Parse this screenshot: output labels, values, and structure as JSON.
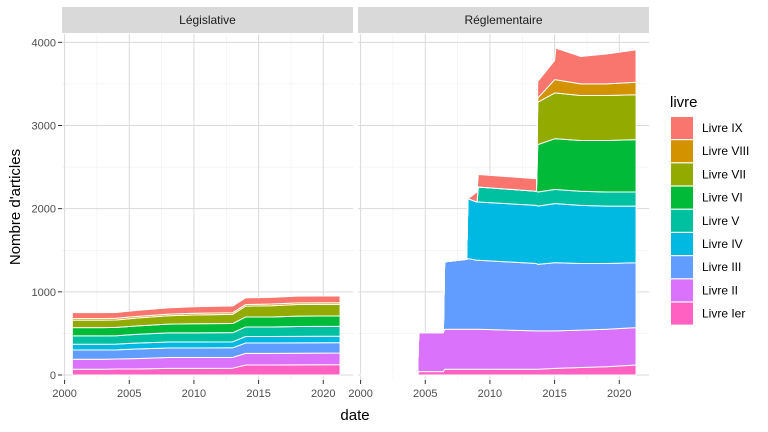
{
  "chart_data": {
    "type": "area",
    "stacked": true,
    "facets": [
      "Législative",
      "Réglementaire"
    ],
    "xlabel": "date",
    "ylabel": "Nombre d'articles",
    "xlim": [
      1999.8,
      2022.3
    ],
    "ylim": [
      -60,
      4100
    ],
    "x_ticks": [
      2000,
      2005,
      2010,
      2015,
      2020
    ],
    "y_ticks": [
      0,
      1000,
      2000,
      3000,
      4000
    ],
    "legend_title": "livre",
    "legend_position": "right",
    "grid": true,
    "series": [
      {
        "name": "Livre Ier",
        "color": "#FF61C3"
      },
      {
        "name": "Livre II",
        "color": "#DB72FB"
      },
      {
        "name": "Livre III",
        "color": "#619CFF"
      },
      {
        "name": "Livre IV",
        "color": "#00B9E3"
      },
      {
        "name": "Livre V",
        "color": "#00C19F"
      },
      {
        "name": "Livre VI",
        "color": "#00BA38"
      },
      {
        "name": "Livre VII",
        "color": "#93AA00"
      },
      {
        "name": "Livre VIII",
        "color": "#D39200"
      },
      {
        "name": "Livre IX",
        "color": "#F8766D"
      }
    ],
    "panels": [
      {
        "facet": "Législative",
        "x": [
          2000.6,
          2003,
          2004,
          2005.5,
          2008,
          2010,
          2013,
          2014,
          2016,
          2018,
          2021.3
        ],
        "values": {
          "Livre Ier": [
            70,
            70,
            72,
            72,
            80,
            80,
            82,
            120,
            120,
            122,
            125
          ],
          "Livre II": [
            120,
            120,
            120,
            125,
            130,
            130,
            130,
            140,
            140,
            140,
            140
          ],
          "Livre III": [
            110,
            110,
            110,
            115,
            115,
            115,
            115,
            125,
            125,
            125,
            125
          ],
          "Livre IV": [
            70,
            70,
            70,
            72,
            72,
            72,
            72,
            78,
            78,
            78,
            78
          ],
          "Livre V": [
            100,
            100,
            100,
            105,
            110,
            110,
            110,
            115,
            115,
            118,
            118
          ],
          "Livre VI": [
            100,
            100,
            100,
            100,
            105,
            110,
            110,
            120,
            120,
            125,
            125
          ],
          "Livre VII": [
            90,
            90,
            90,
            95,
            100,
            105,
            110,
            130,
            135,
            140,
            140
          ],
          "Livre VIII": [
            20,
            20,
            20,
            20,
            20,
            20,
            20,
            20,
            20,
            20,
            20
          ],
          "Livre IX": [
            70,
            70,
            70,
            72,
            75,
            78,
            80,
            80,
            80,
            80,
            80
          ]
        }
      },
      {
        "facet": "Réglementaire",
        "x": [
          2000,
          2004.4,
          2004.5,
          2006.4,
          2006.5,
          2008.2,
          2008.3,
          2009.0,
          2009.1,
          2013.6,
          2013.7,
          2015.0,
          2015.1,
          2017.0,
          2019.0,
          2021.3
        ],
        "values": {
          "Livre Ier": [
            0,
            0,
            40,
            40,
            70,
            70,
            70,
            70,
            70,
            70,
            70,
            80,
            80,
            90,
            100,
            120
          ],
          "Livre II": [
            0,
            0,
            470,
            470,
            480,
            480,
            480,
            480,
            480,
            460,
            460,
            450,
            450,
            450,
            450,
            450
          ],
          "Livre III": [
            0,
            0,
            0,
            0,
            810,
            840,
            850,
            830,
            830,
            810,
            800,
            820,
            820,
            800,
            790,
            780
          ],
          "Livre IV": [
            0,
            0,
            0,
            0,
            0,
            0,
            720,
            700,
            700,
            700,
            700,
            710,
            710,
            700,
            690,
            680
          ],
          "Livre V": [
            0,
            0,
            0,
            0,
            0,
            0,
            0,
            0,
            180,
            170,
            170,
            170,
            170,
            170,
            170,
            170
          ],
          "Livre VI": [
            0,
            0,
            0,
            0,
            0,
            0,
            0,
            0,
            0,
            0,
            570,
            610,
            610,
            610,
            620,
            630
          ],
          "Livre VII": [
            0,
            0,
            0,
            0,
            0,
            0,
            0,
            0,
            0,
            0,
            510,
            550,
            550,
            540,
            540,
            540
          ],
          "Livre VIII": [
            0,
            0,
            0,
            0,
            0,
            0,
            0,
            0,
            0,
            0,
            50,
            160,
            160,
            140,
            140,
            150
          ],
          "Livre IX": [
            0,
            0,
            0,
            0,
            0,
            0,
            0,
            120,
            150,
            150,
            200,
            230,
            380,
            330,
            360,
            390
          ]
        }
      }
    ]
  }
}
